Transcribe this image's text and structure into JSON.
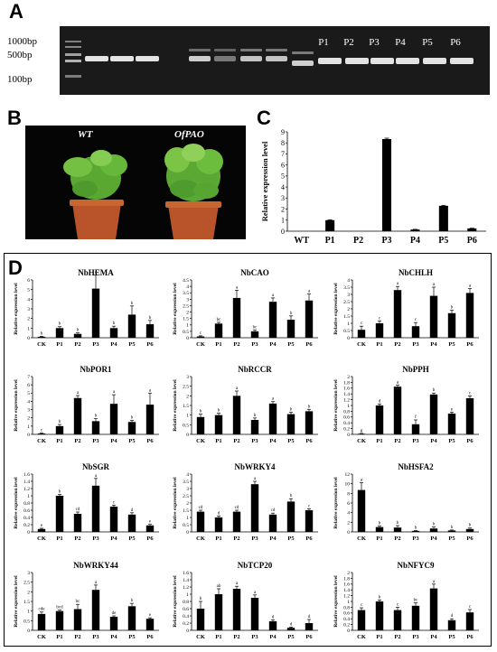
{
  "panelA": {
    "letter": "A",
    "markers": [
      "1000bp",
      "500bp",
      "100bp"
    ],
    "lane_labels": [
      "P1",
      "P2",
      "P3",
      "P4",
      "P5",
      "P6"
    ]
  },
  "panelB": {
    "letter": "B",
    "labels": [
      "WT",
      "OfPAO"
    ]
  },
  "panelC": {
    "letter": "C",
    "chart_data": {
      "type": "bar",
      "categories": [
        "WT",
        "P1",
        "P2",
        "P3",
        "P4",
        "P5",
        "P6"
      ],
      "values": [
        0.0,
        1.0,
        0.0,
        8.35,
        0.15,
        2.3,
        0.25
      ],
      "errors": [
        0,
        0.04,
        0,
        0.08,
        0.02,
        0.04,
        0.02
      ],
      "ylabel": "Relative expression level",
      "ylim": [
        0,
        9
      ],
      "yticks": [
        "0",
        "1",
        "2",
        "3",
        "4",
        "5",
        "6",
        "7",
        "8",
        "9"
      ]
    }
  },
  "panelD": {
    "letter": "D",
    "chart_data": [
      {
        "type": "bar",
        "title": "NbHEMA",
        "ylabel": "Relative expression level",
        "categories": [
          "CK",
          "P1",
          "P2",
          "P3",
          "P4",
          "P5",
          "P6"
        ],
        "values": [
          0.1,
          1.0,
          0.4,
          5.1,
          1.0,
          2.4,
          1.4
        ],
        "errors": [
          0.05,
          0.15,
          0.1,
          1.4,
          0.2,
          0.9,
          0.4
        ],
        "letters": [
          "b",
          "b",
          "b",
          "a",
          "b",
          "b",
          "b"
        ],
        "ylim": [
          0,
          6
        ],
        "yticks": [
          "0",
          "1",
          "2",
          "3",
          "4",
          "5",
          "6"
        ]
      },
      {
        "type": "bar",
        "title": "NbCAO",
        "ylabel": "Relative expression level",
        "categories": [
          "CK",
          "P1",
          "P2",
          "P3",
          "P4",
          "P5",
          "P6"
        ],
        "values": [
          0.1,
          1.1,
          3.1,
          0.5,
          2.8,
          1.4,
          2.9
        ],
        "errors": [
          0.05,
          0.1,
          0.6,
          0.1,
          0.3,
          0.3,
          0.5
        ],
        "letters": [
          "c",
          "bc",
          "a",
          "bc",
          "a",
          "b",
          "a"
        ],
        "ylim": [
          0,
          4.5
        ],
        "yticks": [
          "0",
          "0.5",
          "1",
          "1.5",
          "2",
          "2.5",
          "3",
          "3.5",
          "4",
          "4.5"
        ]
      },
      {
        "type": "bar",
        "title": "NbCHLH",
        "ylabel": "Relative expression level",
        "categories": [
          "CK",
          "P1",
          "P2",
          "P3",
          "P4",
          "P5",
          "P6"
        ],
        "values": [
          0.55,
          1.0,
          3.3,
          0.8,
          2.9,
          1.7,
          3.1
        ],
        "errors": [
          0.25,
          0.15,
          0.25,
          0.25,
          0.6,
          0.2,
          0.3
        ],
        "letters": [
          "c",
          "c",
          "a",
          "c",
          "a",
          "b",
          "a"
        ],
        "ylim": [
          0,
          4
        ],
        "yticks": [
          "0",
          "0.5",
          "1",
          "1.5",
          "2",
          "2.5",
          "3",
          "3.5",
          "4"
        ]
      },
      {
        "type": "bar",
        "title": "NbPOR1",
        "ylabel": "Relative expression level",
        "categories": [
          "CK",
          "P1",
          "P2",
          "P3",
          "P4",
          "P5",
          "P6"
        ],
        "values": [
          0.1,
          1.0,
          4.4,
          1.6,
          3.7,
          1.5,
          3.6
        ],
        "errors": [
          0.05,
          0.2,
          0.3,
          0.3,
          1.1,
          0.2,
          1.4
        ],
        "letters": [
          "c",
          "b",
          "a",
          "b",
          "a",
          "b",
          "a"
        ],
        "ylim": [
          0,
          7
        ],
        "yticks": [
          "0",
          "1",
          "2",
          "3",
          "4",
          "5",
          "6",
          "7"
        ]
      },
      {
        "type": "bar",
        "title": "NbRCCR",
        "ylabel": "Relative expression level",
        "categories": [
          "CK",
          "P1",
          "P2",
          "P3",
          "P4",
          "P5",
          "P6"
        ],
        "values": [
          0.9,
          1.0,
          2.0,
          0.75,
          1.6,
          1.05,
          1.2
        ],
        "errors": [
          0.15,
          0.1,
          0.25,
          0.1,
          0.1,
          0.1,
          0.1
        ],
        "letters": [
          "b",
          "b",
          "a",
          "b",
          "a",
          "b",
          "b"
        ],
        "ylim": [
          0,
          3
        ],
        "yticks": [
          "0",
          "0.5",
          "1",
          "1.5",
          "2",
          "2.5",
          "3"
        ]
      },
      {
        "type": "bar",
        "title": "NbPPH",
        "ylabel": "Relative expression level",
        "categories": [
          "CK",
          "P1",
          "P2",
          "P3",
          "P4",
          "P5",
          "P6"
        ],
        "values": [
          0.02,
          1.0,
          1.65,
          0.35,
          1.38,
          0.72,
          1.25
        ],
        "errors": [
          0.01,
          0.05,
          0.05,
          0.15,
          0.05,
          0.05,
          0.08
        ],
        "letters": [
          "g",
          "d",
          "a",
          "f",
          "b",
          "e",
          "c"
        ],
        "ylim": [
          0,
          2
        ],
        "yticks": [
          "0",
          "0.2",
          "0.4",
          "0.6",
          "0.8",
          "1",
          "1.2",
          "1.4",
          "1.6",
          "1.8",
          "2"
        ]
      },
      {
        "type": "bar",
        "title": "NbSGR",
        "ylabel": "Relative expression level",
        "categories": [
          "CK",
          "P1",
          "P2",
          "P3",
          "P4",
          "P5",
          "P6"
        ],
        "values": [
          0.08,
          1.0,
          0.5,
          1.28,
          0.7,
          0.48,
          0.18
        ],
        "errors": [
          0.02,
          0.04,
          0.05,
          0.2,
          0.04,
          0.05,
          0.03
        ],
        "letters": [
          "e",
          "b",
          "cd",
          "a",
          "c",
          "d",
          "e"
        ],
        "ylim": [
          0,
          1.6
        ],
        "yticks": [
          "0",
          "0.2",
          "0.4",
          "0.6",
          "0.8",
          "1",
          "1.2",
          "1.4",
          "1.6"
        ]
      },
      {
        "type": "bar",
        "title": "NbWRKY4",
        "ylabel": "Relative expression level",
        "categories": [
          "CK",
          "P1",
          "P2",
          "P3",
          "P4",
          "P5",
          "P6"
        ],
        "values": [
          1.4,
          1.0,
          1.4,
          3.3,
          1.2,
          2.1,
          1.5
        ],
        "errors": [
          0.1,
          0.1,
          0.1,
          0.2,
          0.1,
          0.2,
          0.1
        ],
        "letters": [
          "cd",
          "d",
          "cd",
          "a",
          "cd",
          "b",
          "c"
        ],
        "ylim": [
          0,
          4
        ],
        "yticks": [
          "0",
          "0.5",
          "1",
          "1.5",
          "2",
          "2.5",
          "3",
          "3.5",
          "4"
        ]
      },
      {
        "type": "bar",
        "title": "NbHSFA2",
        "ylabel": "Relative expression level",
        "categories": [
          "CK",
          "P1",
          "P2",
          "P3",
          "P4",
          "P5",
          "P6"
        ],
        "values": [
          8.7,
          1.0,
          0.9,
          0.2,
          0.7,
          0.3,
          0.6
        ],
        "errors": [
          1.5,
          0.2,
          0.4,
          0.1,
          0.3,
          0.1,
          0.2
        ],
        "letters": [
          "a",
          "b",
          "b",
          "b",
          "b",
          "b",
          "b"
        ],
        "ylim": [
          0,
          12
        ],
        "yticks": [
          "0",
          "2",
          "4",
          "6",
          "8",
          "10",
          "12"
        ]
      },
      {
        "type": "bar",
        "title": "NbWRKY44",
        "ylabel": "Relative expression level",
        "categories": [
          "CK",
          "P1",
          "P2",
          "P3",
          "P4",
          "P5",
          "P6"
        ],
        "values": [
          0.85,
          1.0,
          1.1,
          2.1,
          0.7,
          1.25,
          0.6
        ],
        "errors": [
          0.1,
          0.05,
          0.25,
          0.25,
          0.05,
          0.15,
          0.05
        ],
        "letters": [
          "cde",
          "bcd",
          "bc",
          "a",
          "de",
          "b",
          "e"
        ],
        "ylim": [
          0,
          3
        ],
        "yticks": [
          "0",
          "0.5",
          "1",
          "1.5",
          "2",
          "2.5",
          "3"
        ]
      },
      {
        "type": "bar",
        "title": "NbTCP20",
        "ylabel": "Relative expression level",
        "categories": [
          "CK",
          "P1",
          "P2",
          "P3",
          "P4",
          "P5",
          "P6"
        ],
        "values": [
          0.6,
          1.0,
          1.15,
          0.9,
          0.25,
          0.07,
          0.2
        ],
        "errors": [
          0.2,
          0.15,
          0.07,
          0.08,
          0.04,
          0.02,
          0.1
        ],
        "letters": [
          "b",
          "ab",
          "a",
          "a",
          "d",
          "d",
          "d"
        ],
        "ylim": [
          0,
          1.6
        ],
        "yticks": [
          "0",
          "0.2",
          "0.4",
          "0.6",
          "0.8",
          "1",
          "1.2",
          "1.4",
          "1.6"
        ]
      },
      {
        "type": "bar",
        "title": "NbNFYC9",
        "ylabel": "Relative expression level",
        "categories": [
          "CK",
          "P1",
          "P2",
          "P3",
          "P4",
          "P5",
          "P6"
        ],
        "values": [
          0.7,
          1.0,
          0.7,
          0.85,
          1.45,
          0.35,
          0.62
        ],
        "errors": [
          0.08,
          0.05,
          0.1,
          0.1,
          0.15,
          0.05,
          0.1
        ],
        "letters": [
          "c",
          "b",
          "c",
          "bc",
          "a",
          "d",
          "c"
        ],
        "ylim": [
          0,
          2
        ],
        "yticks": [
          "0",
          "0.2",
          "0.4",
          "0.6",
          "0.8",
          "1",
          "1.2",
          "1.4",
          "1.6",
          "1.8",
          "2"
        ]
      }
    ]
  }
}
